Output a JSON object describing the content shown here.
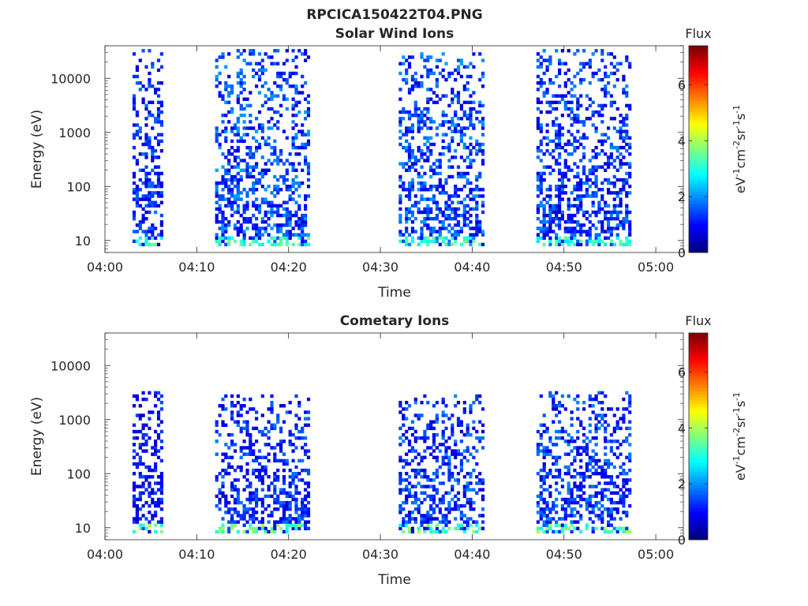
{
  "figure": {
    "title": "RPCICA150422T04.PNG"
  },
  "colorbar": {
    "label": "Flux",
    "unit_main": "eV",
    "unit_sup1": "-1",
    "unit_mid1": "cm",
    "unit_sup2": "-2",
    "unit_mid2": "sr",
    "unit_sup3": "-1",
    "unit_mid3": "s",
    "unit_sup4": "-1",
    "ticks": [
      "0",
      "2",
      "4",
      "6"
    ],
    "range": [
      0,
      7.4
    ],
    "colormap": "jet"
  },
  "chart_data": [
    {
      "type": "heatmap",
      "title": "Solar Wind Ions",
      "xlabel": "Time",
      "ylabel": "Energy (eV)",
      "xticks": [
        "04:00",
        "04:10",
        "04:20",
        "04:30",
        "04:40",
        "04:50",
        "05:00"
      ],
      "xlim_minutes": [
        0,
        63
      ],
      "yticks": [
        "10",
        "100",
        "1000",
        "10000"
      ],
      "yscale": "log",
      "ylim": [
        6,
        40000
      ],
      "bursts": [
        {
          "start": "04:03",
          "end": "04:06",
          "emin": 8,
          "emax": 35000,
          "level": 1.2
        },
        {
          "start": "04:12",
          "end": "04:22",
          "emin": 8,
          "emax": 35000,
          "level": 1.4
        },
        {
          "start": "04:32",
          "end": "04:41",
          "emin": 8,
          "emax": 30000,
          "level": 1.4
        },
        {
          "start": "04:47",
          "end": "04:57",
          "emin": 8,
          "emax": 35000,
          "level": 1.3
        }
      ],
      "low_energy_band": {
        "energy": 10,
        "level": 3.2
      },
      "max_flux": 3.5
    },
    {
      "type": "heatmap",
      "title": "Cometary Ions",
      "xlabel": "Time",
      "ylabel": "Energy (eV)",
      "xticks": [
        "04:00",
        "04:10",
        "04:20",
        "04:30",
        "04:40",
        "04:50",
        "05:00"
      ],
      "xlim_minutes": [
        0,
        63
      ],
      "yticks": [
        "10",
        "100",
        "1000",
        "10000"
      ],
      "yscale": "log",
      "ylim": [
        6,
        40000
      ],
      "bursts": [
        {
          "start": "04:03",
          "end": "04:06",
          "emin": 8,
          "emax": 3500,
          "level": 1.0
        },
        {
          "start": "04:12",
          "end": "04:22",
          "emin": 8,
          "emax": 3000,
          "level": 1.2
        },
        {
          "start": "04:32",
          "end": "04:41",
          "emin": 8,
          "emax": 3000,
          "level": 1.3
        },
        {
          "start": "04:47",
          "end": "04:57",
          "emin": 8,
          "emax": 3500,
          "level": 1.3
        }
      ],
      "low_energy_band": {
        "energy": 10,
        "level": 3.4
      },
      "max_flux": 5.0
    }
  ]
}
